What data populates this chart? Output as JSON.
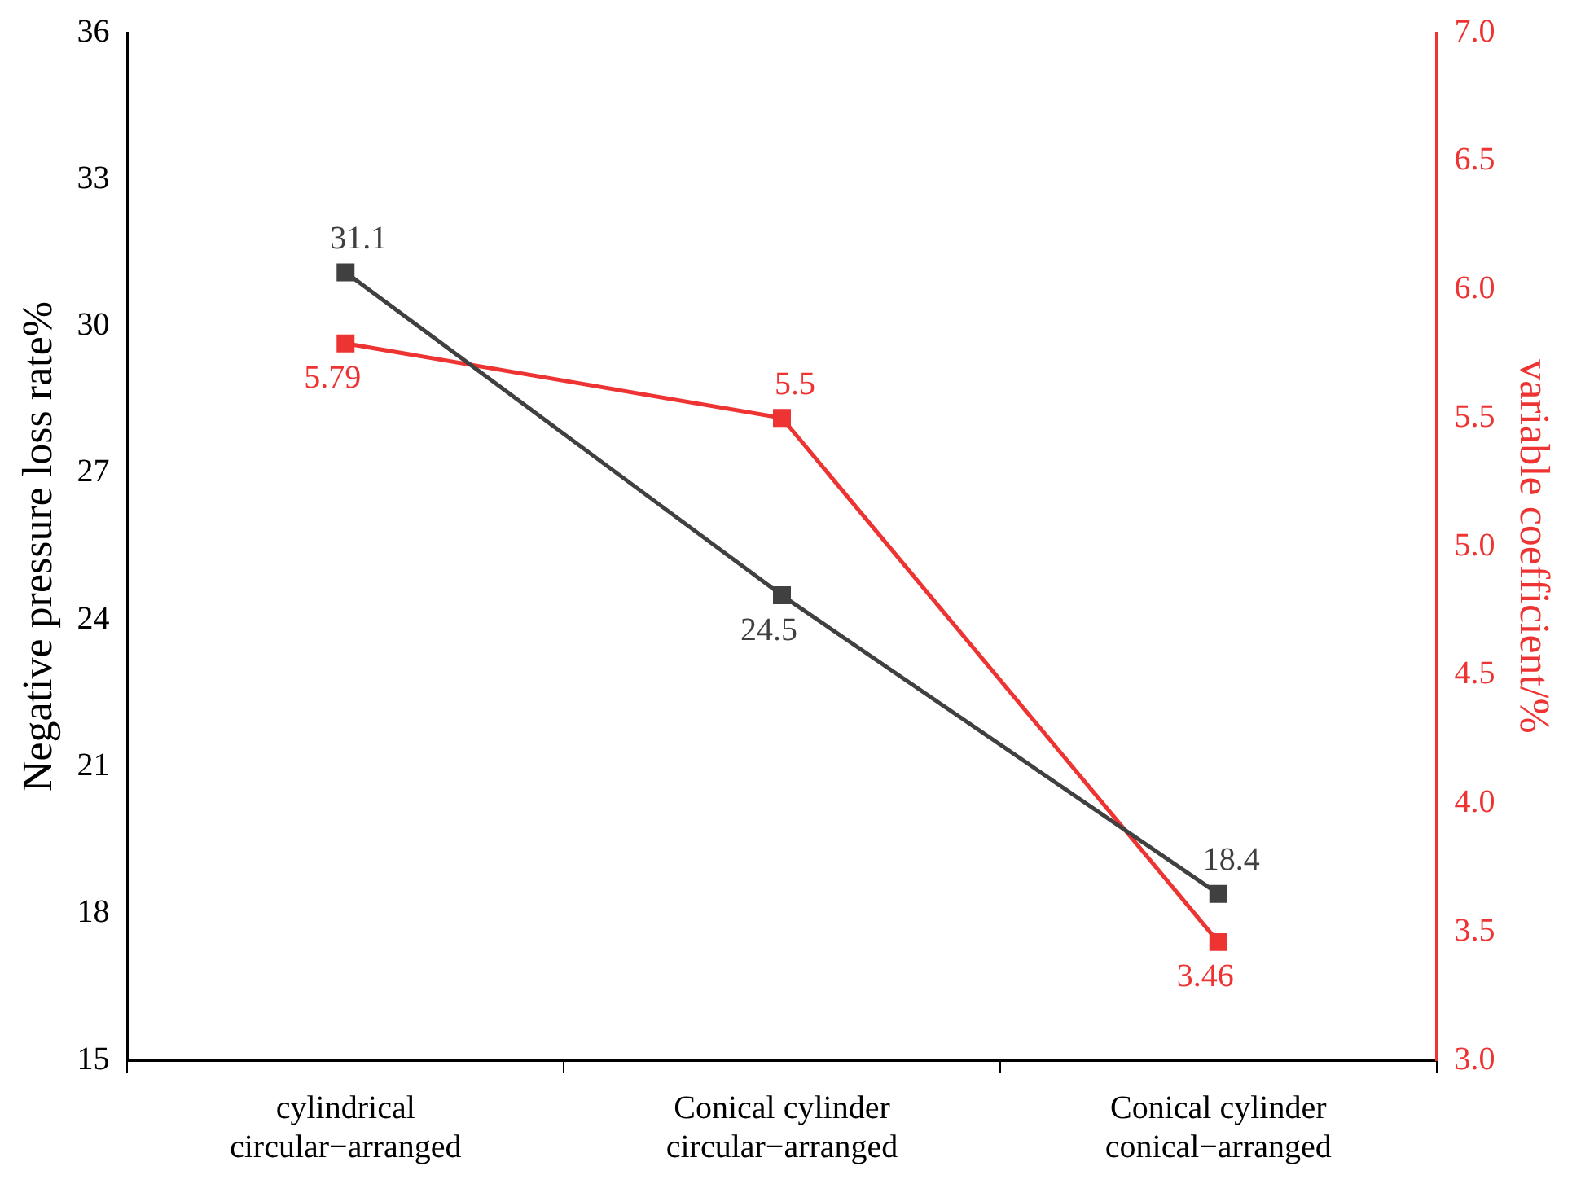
{
  "chart_data": {
    "type": "line",
    "categories": [
      "cylindrical\ncircular−arranged",
      "Conical cylinder\ncircular−arranged",
      "Conical cylinder\nconical−arranged"
    ],
    "series": [
      {
        "color": "#404040",
        "values": [
          31.1,
          24.5,
          18.4
        ]
      },
      {
        "color": "#ee3333",
        "values": [
          5.79,
          5.5,
          3.46
        ],
        "axis": "y2"
      }
    ],
    "ylabel": "Negative pressure loss rate%",
    "y2label": "variable coefficient/%",
    "ylim": [
      15,
      36
    ],
    "yticks": [
      15,
      18,
      21,
      24,
      27,
      30,
      33,
      36
    ],
    "y2lim": [
      3,
      7
    ],
    "y2ticks": [
      {
        "value": 3,
        "label": "3.0"
      },
      {
        "value": 3.5,
        "label": "3.5"
      },
      {
        "value": 4,
        "label": "4.0"
      },
      {
        "value": 4.5,
        "label": "4.5"
      },
      {
        "value": 5,
        "label": "5.0"
      },
      {
        "value": 5.5,
        "label": "5.5"
      },
      {
        "value": 6,
        "label": "6.0"
      },
      {
        "value": 6.5,
        "label": "6.5"
      },
      {
        "value": 7,
        "label": "7.0"
      }
    ],
    "data_labels": true,
    "marker": "square",
    "line_style": "solid"
  }
}
